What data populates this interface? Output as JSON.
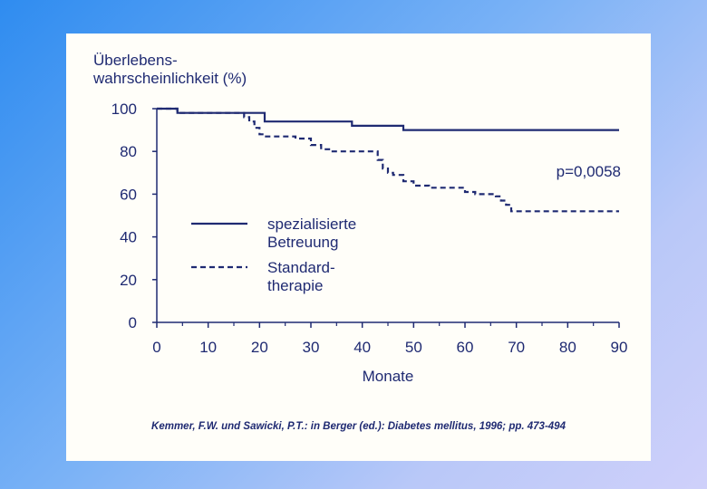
{
  "chart_data": {
    "type": "line",
    "ylabel_lines": [
      "Überlebens-",
      "wahrscheinlichkeit (%)"
    ],
    "xlabel": "Monate",
    "xlim": [
      0,
      90
    ],
    "ylim": [
      0,
      100
    ],
    "xticks": [
      "0",
      "10",
      "20",
      "30",
      "40",
      "50",
      "60",
      "70",
      "80",
      "90"
    ],
    "yticks": [
      "0",
      "20",
      "40",
      "60",
      "80",
      "100"
    ],
    "grid": false,
    "legend_position": "lower-left",
    "annotation": "p=0,0058",
    "series": [
      {
        "name_lines": [
          "spezialisierte",
          "Betreuung"
        ],
        "style": "solid",
        "points": [
          [
            0,
            100
          ],
          [
            4,
            100
          ],
          [
            4,
            98
          ],
          [
            21,
            98
          ],
          [
            21,
            94
          ],
          [
            38,
            94
          ],
          [
            38,
            92
          ],
          [
            48,
            92
          ],
          [
            48,
            90
          ],
          [
            90,
            90
          ]
        ]
      },
      {
        "name_lines": [
          "Standard-",
          "therapie"
        ],
        "style": "dashed",
        "points": [
          [
            0,
            100
          ],
          [
            4,
            100
          ],
          [
            4,
            98
          ],
          [
            17,
            98
          ],
          [
            17,
            96
          ],
          [
            18,
            96
          ],
          [
            18,
            94
          ],
          [
            19,
            94
          ],
          [
            19,
            91
          ],
          [
            20,
            91
          ],
          [
            20,
            88
          ],
          [
            21,
            88
          ],
          [
            21,
            87
          ],
          [
            27,
            87
          ],
          [
            27,
            86
          ],
          [
            30,
            86
          ],
          [
            30,
            83
          ],
          [
            32,
            83
          ],
          [
            32,
            81
          ],
          [
            34,
            81
          ],
          [
            34,
            80
          ],
          [
            43,
            80
          ],
          [
            43,
            76
          ],
          [
            44,
            76
          ],
          [
            44,
            72
          ],
          [
            45,
            72
          ],
          [
            45,
            70
          ],
          [
            46,
            70
          ],
          [
            46,
            69
          ],
          [
            48,
            69
          ],
          [
            48,
            66
          ],
          [
            50,
            66
          ],
          [
            50,
            64
          ],
          [
            53,
            64
          ],
          [
            53,
            63
          ],
          [
            60,
            63
          ],
          [
            60,
            61
          ],
          [
            62,
            61
          ],
          [
            62,
            60
          ],
          [
            66,
            60
          ],
          [
            66,
            59
          ],
          [
            67,
            59
          ],
          [
            67,
            57
          ],
          [
            68,
            57
          ],
          [
            68,
            55
          ],
          [
            69,
            55
          ],
          [
            69,
            52
          ],
          [
            90,
            52
          ]
        ]
      }
    ],
    "colors": {
      "line": "#1f2a72",
      "panel": "#fffef9"
    }
  },
  "citation": "Kemmer, F.W. und Sawicki, P.T.: in Berger (ed.): Diabetes mellitus, 1996; pp. 473-494"
}
